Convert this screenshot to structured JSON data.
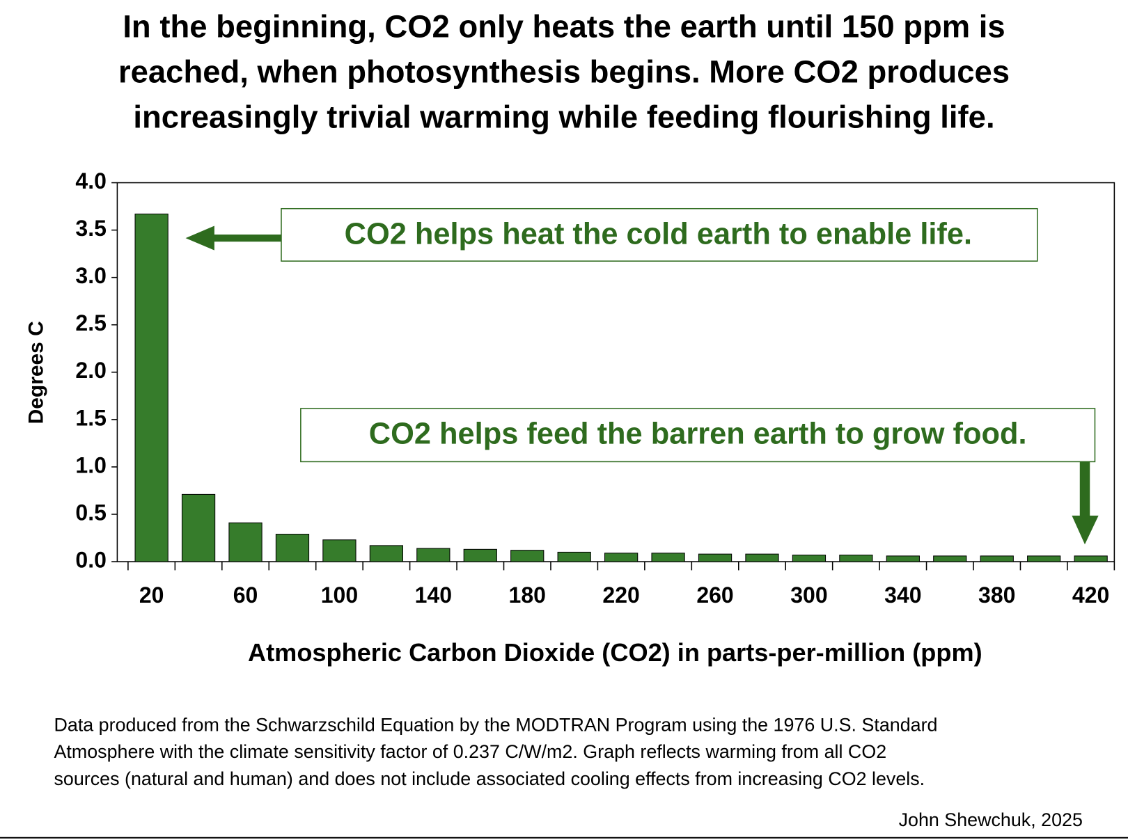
{
  "chart_data": {
    "type": "bar",
    "title": [
      "In the beginning, CO2 only heats the earth until 150 ppm is",
      "reached, when photosynthesis begins.  More CO2 produces",
      "increasingly trivial warming while feeding flourishing life."
    ],
    "x_label": "Atmospheric Carbon Dioxide (CO2) in parts-per-million (ppm)",
    "y_label": "Degrees C",
    "categories": [
      20,
      null,
      60,
      null,
      100,
      null,
      140,
      null,
      180,
      null,
      220,
      null,
      260,
      null,
      300,
      null,
      340,
      null,
      380,
      null,
      420
    ],
    "values": [
      3.67,
      0.71,
      0.41,
      0.29,
      0.23,
      0.17,
      0.14,
      0.13,
      0.12,
      0.1,
      0.09,
      0.09,
      0.08,
      0.08,
      0.07,
      0.07,
      0.06,
      0.06,
      0.06,
      0.06,
      0.06
    ],
    "color": "#367c2b",
    "ylim": [
      0,
      4
    ],
    "yticks": [
      {
        "value": 0,
        "label": "0.0"
      },
      {
        "value": 0.5,
        "label": "0.5"
      },
      {
        "value": 1,
        "label": "1.0"
      },
      {
        "value": 1.5,
        "label": "1.5"
      },
      {
        "value": 2,
        "label": "2.0"
      },
      {
        "value": 2.5,
        "label": "2.5"
      },
      {
        "value": 3,
        "label": "3.0"
      },
      {
        "value": 3.5,
        "label": "3.5"
      },
      {
        "value": 4,
        "label": "4.0"
      }
    ],
    "annotations": [
      "CO2 helps heat the cold earth to enable life.",
      "CO2 helps feed the barren earth to grow food."
    ],
    "footnote": [
      "Data produced from the Schwarzschild Equation by the MODTRAN Program using the 1976 U.S. Standard",
      "Atmosphere with the climate sensitivity factor of 0.237 C/W/m2.  Graph reflects warming from all CO2",
      "sources (natural and human) and does not include associated cooling effects from increasing CO2 levels."
    ],
    "credit": "John Shewchuk, 2025"
  }
}
